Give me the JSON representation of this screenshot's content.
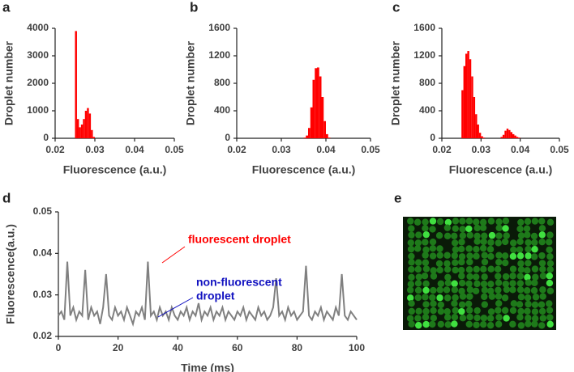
{
  "chart_data": [
    {
      "type": "histogram",
      "panel": "a",
      "ylabel": "Droplet number",
      "xlabel": "Fluorescence (a.u.)",
      "color": "#ff0000",
      "bins": [
        0.025,
        0.0255,
        0.026,
        0.0265,
        0.027,
        0.0275,
        0.028,
        0.0285,
        0.029,
        0.0295,
        0.03
      ],
      "counts": [
        3900,
        700,
        400,
        500,
        700,
        1000,
        1100,
        900,
        300,
        50
      ],
      "xlim": [
        0.02,
        0.05
      ],
      "xticks": [
        0.02,
        0.03,
        0.04,
        0.05
      ],
      "ylim": [
        0,
        4000
      ],
      "yticks": [
        0,
        1000,
        2000,
        3000,
        4000
      ]
    },
    {
      "type": "histogram",
      "panel": "b",
      "ylabel": "Droplet number",
      "xlabel": "Fluorescence (a.u.)",
      "color": "#ff0000",
      "bins": [
        0.035,
        0.0355,
        0.036,
        0.0365,
        0.037,
        0.0375,
        0.038,
        0.0385,
        0.039,
        0.0395,
        0.04,
        0.0405,
        0.041
      ],
      "counts": [
        10,
        40,
        150,
        450,
        850,
        1020,
        1030,
        900,
        600,
        250,
        60,
        10
      ],
      "xlim": [
        0.02,
        0.05
      ],
      "xticks": [
        0.02,
        0.03,
        0.04,
        0.05
      ],
      "ylim": [
        0,
        1600
      ],
      "yticks": [
        0,
        400,
        800,
        1200,
        1600
      ]
    },
    {
      "type": "histogram",
      "panel": "c",
      "ylabel": "Droplet number",
      "xlabel": "Fluorescence (a.u.)",
      "color": "#ff0000",
      "bins": [
        0.025,
        0.0255,
        0.026,
        0.0265,
        0.027,
        0.0275,
        0.028,
        0.0285,
        0.029,
        0.0295,
        0.03,
        0.0305,
        0.031,
        0.0315,
        0.032,
        0.0325,
        0.033,
        0.0335,
        0.034,
        0.0345,
        0.035,
        0.0355,
        0.036,
        0.0365,
        0.037,
        0.0375,
        0.038,
        0.0385,
        0.039,
        0.0395,
        0.04
      ],
      "counts": [
        700,
        1050,
        1230,
        1270,
        1150,
        900,
        600,
        350,
        200,
        80,
        30,
        10,
        0,
        0,
        0,
        0,
        0,
        0,
        0,
        0,
        20,
        50,
        110,
        140,
        120,
        90,
        60,
        40,
        20,
        10
      ],
      "xlim": [
        0.02,
        0.05
      ],
      "xticks": [
        0.02,
        0.03,
        0.04,
        0.05
      ],
      "ylim": [
        0,
        1600
      ],
      "yticks": [
        0,
        400,
        800,
        1200,
        1600
      ]
    },
    {
      "type": "line",
      "panel": "d",
      "ylabel": "Fluorescence(a.u.)",
      "xlabel": "Time (ms)",
      "x": [
        0,
        1,
        2,
        3,
        4,
        5,
        6,
        7,
        8,
        9,
        10,
        11,
        12,
        13,
        14,
        15,
        16,
        17,
        18,
        19,
        20,
        21,
        22,
        23,
        24,
        25,
        26,
        27,
        28,
        29,
        30,
        31,
        32,
        33,
        34,
        35,
        36,
        37,
        38,
        39,
        40,
        41,
        42,
        43,
        44,
        45,
        46,
        47,
        48,
        49,
        50,
        51,
        52,
        53,
        54,
        55,
        56,
        57,
        58,
        59,
        60,
        61,
        62,
        63,
        64,
        65,
        66,
        67,
        68,
        69,
        70,
        71,
        72,
        73,
        74,
        75,
        76,
        77,
        78,
        79,
        80,
        81,
        82,
        83,
        84,
        85,
        86,
        87,
        88,
        89,
        90,
        91,
        92,
        93,
        94,
        95,
        96,
        97,
        98,
        99,
        100
      ],
      "series": [
        {
          "color": "#808080",
          "values": [
            0.025,
            0.026,
            0.024,
            0.038,
            0.025,
            0.027,
            0.024,
            0.026,
            0.025,
            0.036,
            0.024,
            0.027,
            0.025,
            0.026,
            0.023,
            0.027,
            0.035,
            0.025,
            0.024,
            0.027,
            0.025,
            0.026,
            0.024,
            0.027,
            0.025,
            0.023,
            0.026,
            0.025,
            0.027,
            0.024,
            0.038,
            0.025,
            0.026,
            0.024,
            0.027,
            0.025,
            0.026,
            0.024,
            0.027,
            0.025,
            0.024,
            0.026,
            0.025,
            0.027,
            0.024,
            0.026,
            0.025,
            0.028,
            0.024,
            0.026,
            0.025,
            0.027,
            0.024,
            0.026,
            0.025,
            0.027,
            0.024,
            0.026,
            0.025,
            0.024,
            0.026,
            0.025,
            0.027,
            0.024,
            0.026,
            0.025,
            0.024,
            0.027,
            0.025,
            0.026,
            0.024,
            0.025,
            0.027,
            0.034,
            0.025,
            0.026,
            0.024,
            0.027,
            0.025,
            0.026,
            0.024,
            0.025,
            0.026,
            0.037,
            0.025,
            0.024,
            0.026,
            0.025,
            0.027,
            0.024,
            0.026,
            0.025,
            0.024,
            0.027,
            0.025,
            0.035,
            0.025,
            0.024,
            0.026,
            0.025,
            0.024
          ]
        }
      ],
      "annotations": [
        {
          "lines": [
            "fluorescent droplet"
          ],
          "color": "#ff0000"
        },
        {
          "lines": [
            "non-fluorescent",
            "droplet"
          ],
          "color": "#1010c0"
        }
      ],
      "xlim": [
        0,
        100
      ],
      "xticks": [
        0,
        20,
        40,
        60,
        80,
        100
      ],
      "ylim": [
        0.02,
        0.05
      ],
      "yticks": [
        0.02,
        0.03,
        0.04,
        0.05
      ]
    },
    {
      "type": "image",
      "panel": "e"
    }
  ]
}
